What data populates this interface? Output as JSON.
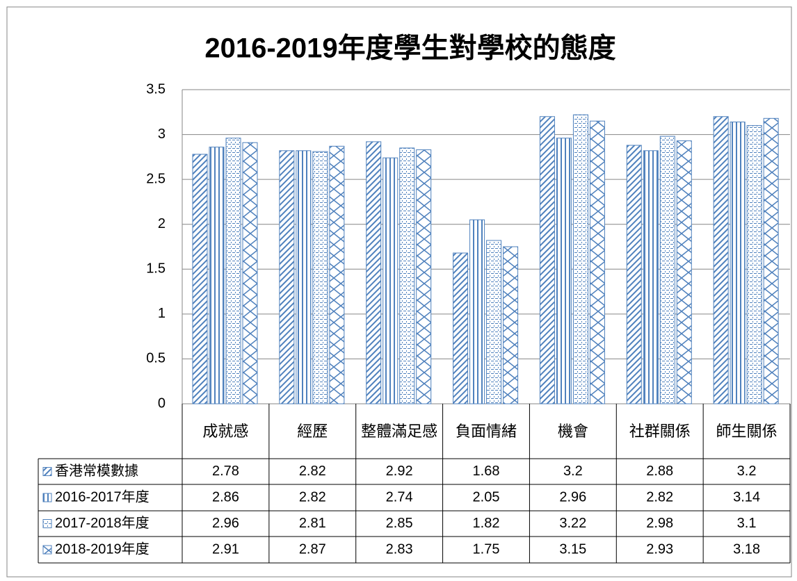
{
  "chart_data": {
    "type": "bar",
    "title": "2016-2019年度學生對學校的態度",
    "categories": [
      "成就感",
      "經歷",
      "整體滿足感",
      "負面情緒",
      "機會",
      "社群關係",
      "師生關係"
    ],
    "series": [
      {
        "name": "香港常模數據",
        "color": "#4f81bd",
        "values": [
          2.78,
          2.82,
          2.92,
          1.68,
          3.2,
          2.88,
          3.2
        ]
      },
      {
        "name": "2016-2017年度",
        "color": "#4f81bd",
        "values": [
          2.86,
          2.82,
          2.74,
          2.05,
          2.96,
          2.82,
          3.14
        ]
      },
      {
        "name": "2017-2018年度",
        "color": "#4f81bd",
        "values": [
          2.96,
          2.81,
          2.85,
          1.82,
          3.22,
          2.98,
          3.1
        ]
      },
      {
        "name": "2018-2019年度",
        "color": "#4f81bd",
        "values": [
          2.91,
          2.87,
          2.83,
          1.75,
          3.15,
          2.93,
          3.18
        ]
      }
    ],
    "ylim": [
      0,
      3.5
    ],
    "yticks": [
      0,
      0.5,
      1,
      1.5,
      2,
      2.5,
      3,
      3.5
    ],
    "grid": true
  }
}
